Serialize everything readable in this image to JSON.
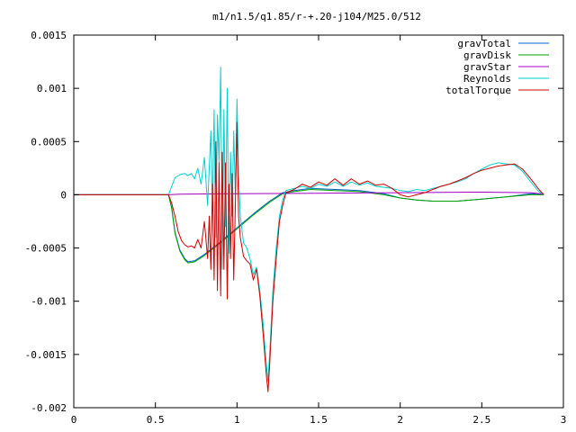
{
  "chart_data": {
    "type": "line",
    "title": "m1/n1.5/q1.85/r-+.20-j104/M25.0/512",
    "xlabel": "",
    "ylabel": "",
    "xlim": [
      0,
      3
    ],
    "ylim": [
      -0.002,
      0.0015
    ],
    "xticks": [
      "0",
      "0.5",
      "1",
      "1.5",
      "2",
      "2.5",
      "3"
    ],
    "xtick_values": [
      0,
      0.5,
      1,
      1.5,
      2,
      2.5,
      3
    ],
    "yticks": [
      "0.0015",
      "0.001",
      "0.0005",
      "0",
      "-0.0005",
      "-0.001",
      "-0.0015",
      "-0.002"
    ],
    "ytick_values": [
      0.0015,
      0.001,
      0.0005,
      0,
      -0.0005,
      -0.001,
      -0.0015,
      -0.002
    ],
    "grid": false,
    "legend_position": "top-right",
    "series": [
      {
        "name": "gravTotal",
        "color": "#0066cc",
        "points": [
          [
            0,
            0
          ],
          [
            0.58,
            0
          ],
          [
            0.6,
            -0.00012
          ],
          [
            0.62,
            -0.00035
          ],
          [
            0.65,
            -0.00052
          ],
          [
            0.68,
            -0.0006
          ],
          [
            0.7,
            -0.00063
          ],
          [
            0.74,
            -0.00062
          ],
          [
            0.8,
            -0.00056
          ],
          [
            0.9,
            -0.00044
          ],
          [
            1.0,
            -0.00031
          ],
          [
            1.1,
            -0.00018
          ],
          [
            1.2,
            -6e-05
          ],
          [
            1.28,
            2e-05
          ],
          [
            1.35,
            4e-05
          ],
          [
            1.45,
            6e-05
          ],
          [
            1.6,
            5e-05
          ],
          [
            1.75,
            4e-05
          ],
          [
            1.9,
            1e-05
          ],
          [
            2.0,
            -3e-05
          ],
          [
            2.1,
            -5e-05
          ],
          [
            2.2,
            -6e-05
          ],
          [
            2.35,
            -6e-05
          ],
          [
            2.5,
            -4e-05
          ],
          [
            2.65,
            -2e-05
          ],
          [
            2.8,
            1e-05
          ],
          [
            2.88,
            0
          ]
        ]
      },
      {
        "name": "gravDisk",
        "color": "#00a000",
        "points": [
          [
            0,
            0
          ],
          [
            0.58,
            0
          ],
          [
            0.6,
            -0.00013
          ],
          [
            0.62,
            -0.00036
          ],
          [
            0.65,
            -0.00053
          ],
          [
            0.68,
            -0.00061
          ],
          [
            0.7,
            -0.00064
          ],
          [
            0.74,
            -0.00063
          ],
          [
            0.8,
            -0.00057
          ],
          [
            0.9,
            -0.00045
          ],
          [
            1.0,
            -0.00032
          ],
          [
            1.1,
            -0.00019
          ],
          [
            1.2,
            -7e-05
          ],
          [
            1.28,
            1e-05
          ],
          [
            1.35,
            3e-05
          ],
          [
            1.45,
            5e-05
          ],
          [
            1.6,
            4e-05
          ],
          [
            1.75,
            3e-05
          ],
          [
            1.9,
            0
          ],
          [
            2.0,
            -3e-05
          ],
          [
            2.1,
            -5e-05
          ],
          [
            2.2,
            -6e-05
          ],
          [
            2.35,
            -6e-05
          ],
          [
            2.5,
            -4e-05
          ],
          [
            2.65,
            -2e-05
          ],
          [
            2.8,
            0
          ],
          [
            2.88,
            0
          ]
        ]
      },
      {
        "name": "gravStar",
        "color": "#a000c0",
        "points": [
          [
            0,
            0
          ],
          [
            0.58,
            0
          ],
          [
            0.65,
            5e-06
          ],
          [
            0.8,
            8e-06
          ],
          [
            1.0,
            1e-05
          ],
          [
            1.5,
            1.5e-05
          ],
          [
            2.0,
            2e-05
          ],
          [
            2.5,
            2.5e-05
          ],
          [
            2.8,
            2e-05
          ],
          [
            2.88,
            5e-06
          ]
        ]
      },
      {
        "name": "Reynolds",
        "color": "#00d0d0",
        "points": [
          [
            0,
            0
          ],
          [
            0.58,
            0
          ],
          [
            0.6,
            8e-05
          ],
          [
            0.62,
            0.00016
          ],
          [
            0.65,
            0.00019
          ],
          [
            0.68,
            0.0002
          ],
          [
            0.7,
            0.00018
          ],
          [
            0.72,
            0.0002
          ],
          [
            0.74,
            0.00015
          ],
          [
            0.76,
            0.00025
          ],
          [
            0.78,
            0.0001
          ],
          [
            0.8,
            0.00035
          ],
          [
            0.82,
            -0.0001
          ],
          [
            0.84,
            0.0006
          ],
          [
            0.85,
            -0.00015
          ],
          [
            0.86,
            0.0008
          ],
          [
            0.87,
            -0.0004
          ],
          [
            0.88,
            0.00075
          ],
          [
            0.89,
            0.0003
          ],
          [
            0.9,
            0.0012
          ],
          [
            0.91,
            -0.0007
          ],
          [
            0.92,
            0.0008
          ],
          [
            0.93,
            -0.0003
          ],
          [
            0.94,
            0.001
          ],
          [
            0.95,
            -0.00055
          ],
          [
            0.96,
            0.0004
          ],
          [
            0.97,
            -0.0002
          ],
          [
            0.98,
            0.0006
          ],
          [
            0.99,
            0
          ],
          [
            1.0,
            0.0009
          ],
          [
            1.01,
            0.0002
          ],
          [
            1.02,
            -0.0002
          ],
          [
            1.04,
            -0.00045
          ],
          [
            1.06,
            -0.0005
          ],
          [
            1.08,
            -0.0006
          ],
          [
            1.1,
            -0.00075
          ],
          [
            1.12,
            -0.00068
          ],
          [
            1.14,
            -0.0009
          ],
          [
            1.16,
            -0.0012
          ],
          [
            1.18,
            -0.0016
          ],
          [
            1.19,
            -0.00175
          ],
          [
            1.2,
            -0.0015
          ],
          [
            1.22,
            -0.0009
          ],
          [
            1.24,
            -0.0005
          ],
          [
            1.26,
            -0.0002
          ],
          [
            1.28,
            -5e-05
          ],
          [
            1.3,
            4e-05
          ],
          [
            1.35,
            6e-05
          ],
          [
            1.4,
            8e-05
          ],
          [
            1.45,
            6e-05
          ],
          [
            1.5,
            0.0001
          ],
          [
            1.55,
            8e-05
          ],
          [
            1.6,
            0.00012
          ],
          [
            1.65,
            8e-05
          ],
          [
            1.7,
            0.00012
          ],
          [
            1.75,
            9e-05
          ],
          [
            1.8,
            0.00011
          ],
          [
            1.85,
            8e-05
          ],
          [
            1.9,
            7e-05
          ],
          [
            1.95,
            6e-05
          ],
          [
            2.0,
            4e-05
          ],
          [
            2.05,
            3e-05
          ],
          [
            2.1,
            5e-05
          ],
          [
            2.15,
            4e-05
          ],
          [
            2.2,
            6e-05
          ],
          [
            2.25,
            8e-05
          ],
          [
            2.3,
            0.0001
          ],
          [
            2.35,
            0.00012
          ],
          [
            2.4,
            0.00015
          ],
          [
            2.45,
            0.0002
          ],
          [
            2.5,
            0.00024
          ],
          [
            2.55,
            0.00028
          ],
          [
            2.6,
            0.0003
          ],
          [
            2.65,
            0.00029
          ],
          [
            2.7,
            0.00028
          ],
          [
            2.75,
            0.00022
          ],
          [
            2.8,
            0.00012
          ],
          [
            2.85,
            3e-05
          ],
          [
            2.88,
            0
          ]
        ]
      },
      {
        "name": "totalTorque",
        "color": "#d00000",
        "points": [
          [
            0,
            0
          ],
          [
            0.58,
            0
          ],
          [
            0.6,
            -8e-05
          ],
          [
            0.62,
            -0.0002
          ],
          [
            0.64,
            -0.00035
          ],
          [
            0.66,
            -0.00043
          ],
          [
            0.68,
            -0.00047
          ],
          [
            0.7,
            -0.00049
          ],
          [
            0.72,
            -0.00048
          ],
          [
            0.74,
            -0.0005
          ],
          [
            0.76,
            -0.00042
          ],
          [
            0.78,
            -0.0005
          ],
          [
            0.8,
            -0.00025
          ],
          [
            0.82,
            -0.0006
          ],
          [
            0.83,
            -0.0002
          ],
          [
            0.84,
            -0.0007
          ],
          [
            0.85,
            0.0001
          ],
          [
            0.86,
            -0.0008
          ],
          [
            0.87,
            0.0005
          ],
          [
            0.88,
            -0.0009
          ],
          [
            0.89,
            0.0003
          ],
          [
            0.9,
            -0.00095
          ],
          [
            0.91,
            0.0004
          ],
          [
            0.92,
            -0.0007
          ],
          [
            0.93,
            0.0003
          ],
          [
            0.94,
            -0.00098
          ],
          [
            0.95,
            0.0001
          ],
          [
            0.96,
            -0.0006
          ],
          [
            0.97,
            0.0002
          ],
          [
            0.98,
            -0.0008
          ],
          [
            0.99,
            -0.0001
          ],
          [
            1.0,
            0.00068
          ],
          [
            1.01,
            -0.0002
          ],
          [
            1.02,
            -0.0004
          ],
          [
            1.04,
            -0.00058
          ],
          [
            1.06,
            -0.00062
          ],
          [
            1.08,
            -0.00065
          ],
          [
            1.1,
            -0.0008
          ],
          [
            1.12,
            -0.0007
          ],
          [
            1.14,
            -0.00095
          ],
          [
            1.16,
            -0.0013
          ],
          [
            1.18,
            -0.0017
          ],
          [
            1.19,
            -0.00185
          ],
          [
            1.2,
            -0.0016
          ],
          [
            1.22,
            -0.001
          ],
          [
            1.24,
            -0.0006
          ],
          [
            1.26,
            -0.00025
          ],
          [
            1.28,
            -0.0001
          ],
          [
            1.3,
            2e-05
          ],
          [
            1.35,
            5e-05
          ],
          [
            1.4,
            0.0001
          ],
          [
            1.45,
            7e-05
          ],
          [
            1.5,
            0.00012
          ],
          [
            1.55,
            9e-05
          ],
          [
            1.6,
            0.00015
          ],
          [
            1.65,
            9e-05
          ],
          [
            1.7,
            0.00015
          ],
          [
            1.75,
            0.0001
          ],
          [
            1.8,
            0.00013
          ],
          [
            1.85,
            9e-05
          ],
          [
            1.9,
            0.0001
          ],
          [
            1.95,
            6e-05
          ],
          [
            2.0,
            0
          ],
          [
            2.05,
            -2e-05
          ],
          [
            2.1,
            0
          ],
          [
            2.15,
            2e-05
          ],
          [
            2.2,
            5e-05
          ],
          [
            2.25,
            8e-05
          ],
          [
            2.3,
            0.0001
          ],
          [
            2.35,
            0.00013
          ],
          [
            2.4,
            0.00016
          ],
          [
            2.45,
            0.0002
          ],
          [
            2.5,
            0.00023
          ],
          [
            2.55,
            0.00025
          ],
          [
            2.6,
            0.00027
          ],
          [
            2.65,
            0.00028
          ],
          [
            2.7,
            0.00029
          ],
          [
            2.75,
            0.00024
          ],
          [
            2.8,
            0.00015
          ],
          [
            2.85,
            5e-05
          ],
          [
            2.88,
            0
          ]
        ]
      }
    ]
  }
}
